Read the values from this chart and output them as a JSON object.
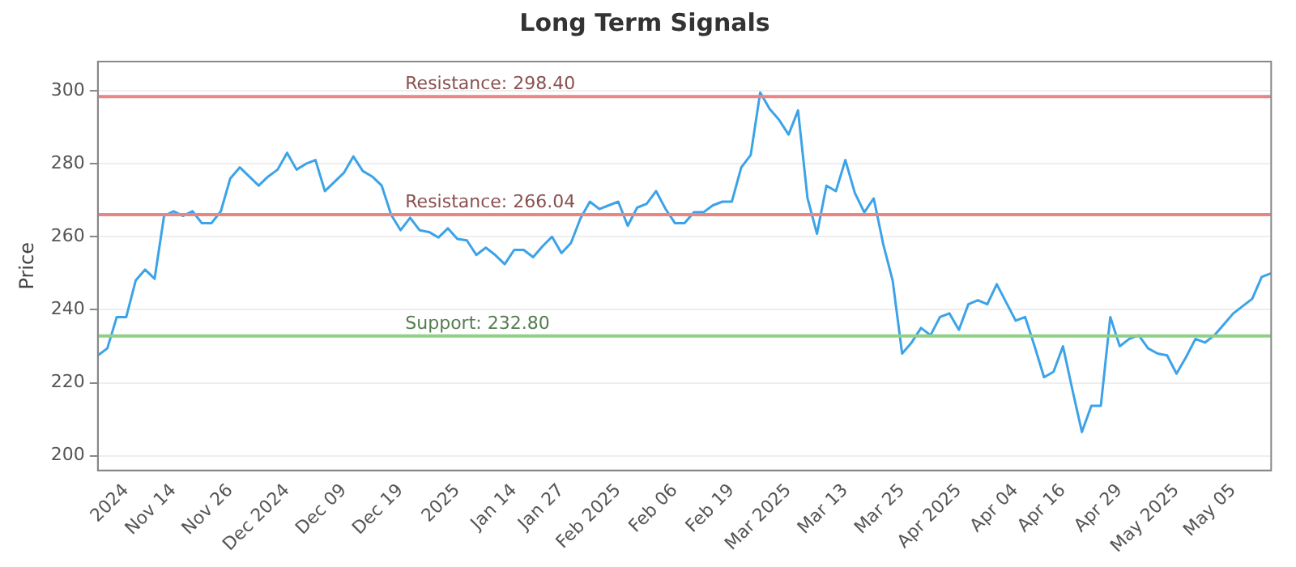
{
  "chart_data": {
    "type": "line",
    "title": "Long Term Signals",
    "ylabel": "Price",
    "categories": [
      null,
      null,
      null,
      "2024",
      null,
      null,
      null,
      null,
      "Nov 14",
      null,
      null,
      null,
      null,
      null,
      "Nov 26",
      null,
      null,
      null,
      null,
      null,
      "Dec 2024",
      null,
      null,
      null,
      null,
      null,
      "Dec 09",
      null,
      null,
      null,
      null,
      null,
      "Dec 19",
      null,
      null,
      null,
      null,
      null,
      "2025",
      null,
      null,
      null,
      null,
      null,
      "Jan 14",
      null,
      null,
      null,
      null,
      "Jan 27",
      null,
      null,
      null,
      null,
      null,
      "Feb 2025",
      null,
      null,
      null,
      null,
      null,
      "Feb 06",
      null,
      null,
      null,
      null,
      null,
      "Feb 19",
      null,
      null,
      null,
      null,
      null,
      "Mar 2025",
      null,
      null,
      null,
      null,
      null,
      "Mar 13",
      null,
      null,
      null,
      null,
      null,
      "Mar 25",
      null,
      null,
      null,
      null,
      null,
      "Apr 2025",
      null,
      null,
      null,
      null,
      null,
      "Apr 04",
      null,
      null,
      null,
      null,
      "Apr 16",
      null,
      null,
      null,
      null,
      null,
      "Apr 29",
      null,
      null,
      null,
      null,
      null,
      "May 2025",
      null,
      null,
      null,
      null,
      null,
      "May 05",
      null,
      null,
      null,
      null
    ],
    "series": [
      {
        "color": "#3ca3e8",
        "values": [
          227.5,
          229.4,
          238,
          238,
          248,
          251,
          248.5,
          265.7,
          267,
          265.7,
          267,
          263.7,
          263.7,
          267,
          276,
          279,
          276.5,
          274,
          276.5,
          278.4,
          283,
          278.4,
          280,
          281,
          272.5,
          275,
          277.5,
          282,
          278,
          276.5,
          274,
          266,
          261.8,
          265.2,
          261.8,
          261.3,
          259.8,
          262.3,
          259.4,
          259,
          255,
          257,
          255,
          252.5,
          256.4,
          256.4,
          254.4,
          257.4,
          260,
          255.5,
          258.3,
          265,
          269.6,
          267.6,
          268.6,
          269.6,
          263,
          268,
          269,
          272.5,
          267.6,
          263.7,
          263.7,
          266.7,
          266.7,
          268.6,
          269.6,
          269.6,
          279,
          282.4,
          299.5,
          295,
          292,
          288,
          294.6,
          270.6,
          260.8,
          274,
          272.5,
          281,
          272,
          266.7,
          270.5,
          258,
          248,
          228,
          231,
          235,
          233,
          238,
          239,
          234.5,
          241.5,
          242.6,
          241.5,
          247,
          242,
          237,
          238,
          230,
          221.5,
          223,
          230,
          218,
          206.5,
          213.7,
          213.7,
          238,
          230,
          232,
          233,
          229.4,
          228,
          227.5,
          222.5,
          227,
          232,
          231,
          233,
          236,
          239,
          241,
          243,
          249,
          250
        ]
      }
    ],
    "ylim": [
      196,
      308
    ],
    "yticks": [
      200,
      220,
      240,
      260,
      280,
      300
    ],
    "grid": "y",
    "legend": false,
    "marker": "none",
    "line_style": "solid",
    "ref_lines": [
      {
        "axis": "y",
        "value": 298.4,
        "label": "Resistance: 298.40",
        "color": "#e88585"
      },
      {
        "axis": "y",
        "value": 266.04,
        "label": "Resistance: 266.04",
        "color": "#e88585"
      },
      {
        "axis": "y",
        "value": 232.8,
        "label": "Support: 232.80",
        "color": "#8fcf86"
      }
    ]
  }
}
